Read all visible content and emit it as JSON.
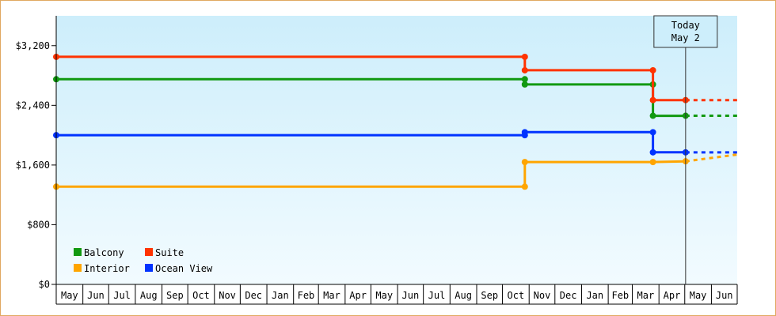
{
  "chart_data": {
    "type": "line",
    "step": true,
    "title": "",
    "xlabel": "",
    "ylabel": "",
    "ylim": [
      0,
      3600
    ],
    "yticks": [
      0,
      800,
      1600,
      2400,
      3200
    ],
    "ytick_labels": [
      "$0",
      "$800",
      "$1,600",
      "$2,400",
      "$3,200"
    ],
    "xlim": [
      "2011-05-01",
      "2013-07-01"
    ],
    "months": [
      "May",
      "Jun",
      "Jul",
      "Aug",
      "Sep",
      "Oct",
      "Nov",
      "Dec",
      "Jan",
      "Feb",
      "Mar",
      "Apr",
      "May",
      "Jun",
      "Jul",
      "Aug",
      "Sep",
      "Oct",
      "Nov",
      "Dec",
      "Jan",
      "Feb",
      "Mar",
      "Apr",
      "May",
      "Jun"
    ],
    "today": {
      "label_line1": "Today",
      "label_line2": "May 2",
      "date": "2013-05-02"
    },
    "background": {
      "top": "#cdeefb",
      "bottom": "#f2fbff"
    },
    "legend": {
      "placement": "bottom-left",
      "columns": 2
    },
    "series": [
      {
        "name": "Balcony",
        "color": "#119911",
        "points": [
          [
            "2011-05-01",
            2750
          ],
          [
            "2012-10-27",
            2750
          ],
          [
            "2012-10-27",
            2680
          ],
          [
            "2013-03-25",
            2680
          ],
          [
            "2013-03-25",
            2260
          ],
          [
            "2013-05-02",
            2260
          ]
        ],
        "projection": [
          [
            "2013-05-02",
            2260
          ],
          [
            "2013-07-01",
            2260
          ]
        ]
      },
      {
        "name": "Suite",
        "color": "#ff3300",
        "points": [
          [
            "2011-05-01",
            3050
          ],
          [
            "2012-10-27",
            3050
          ],
          [
            "2012-10-27",
            2870
          ],
          [
            "2013-03-25",
            2870
          ],
          [
            "2013-03-25",
            2470
          ],
          [
            "2013-05-02",
            2470
          ]
        ],
        "projection": [
          [
            "2013-05-02",
            2470
          ],
          [
            "2013-07-01",
            2470
          ]
        ]
      },
      {
        "name": "Interior",
        "color": "#ffa500",
        "points": [
          [
            "2011-05-01",
            1310
          ],
          [
            "2012-10-27",
            1310
          ],
          [
            "2012-10-27",
            1640
          ],
          [
            "2013-03-25",
            1640
          ],
          [
            "2013-05-02",
            1650
          ]
        ],
        "projection": [
          [
            "2013-05-02",
            1650
          ],
          [
            "2013-07-01",
            1740
          ]
        ]
      },
      {
        "name": "Ocean View",
        "color": "#0033ff",
        "points": [
          [
            "2011-05-01",
            2000
          ],
          [
            "2012-10-27",
            2000
          ],
          [
            "2012-10-27",
            2040
          ],
          [
            "2013-03-25",
            2040
          ],
          [
            "2013-03-25",
            1770
          ],
          [
            "2013-05-02",
            1770
          ]
        ],
        "projection": [
          [
            "2013-05-02",
            1770
          ],
          [
            "2013-07-01",
            1770
          ]
        ]
      }
    ]
  }
}
